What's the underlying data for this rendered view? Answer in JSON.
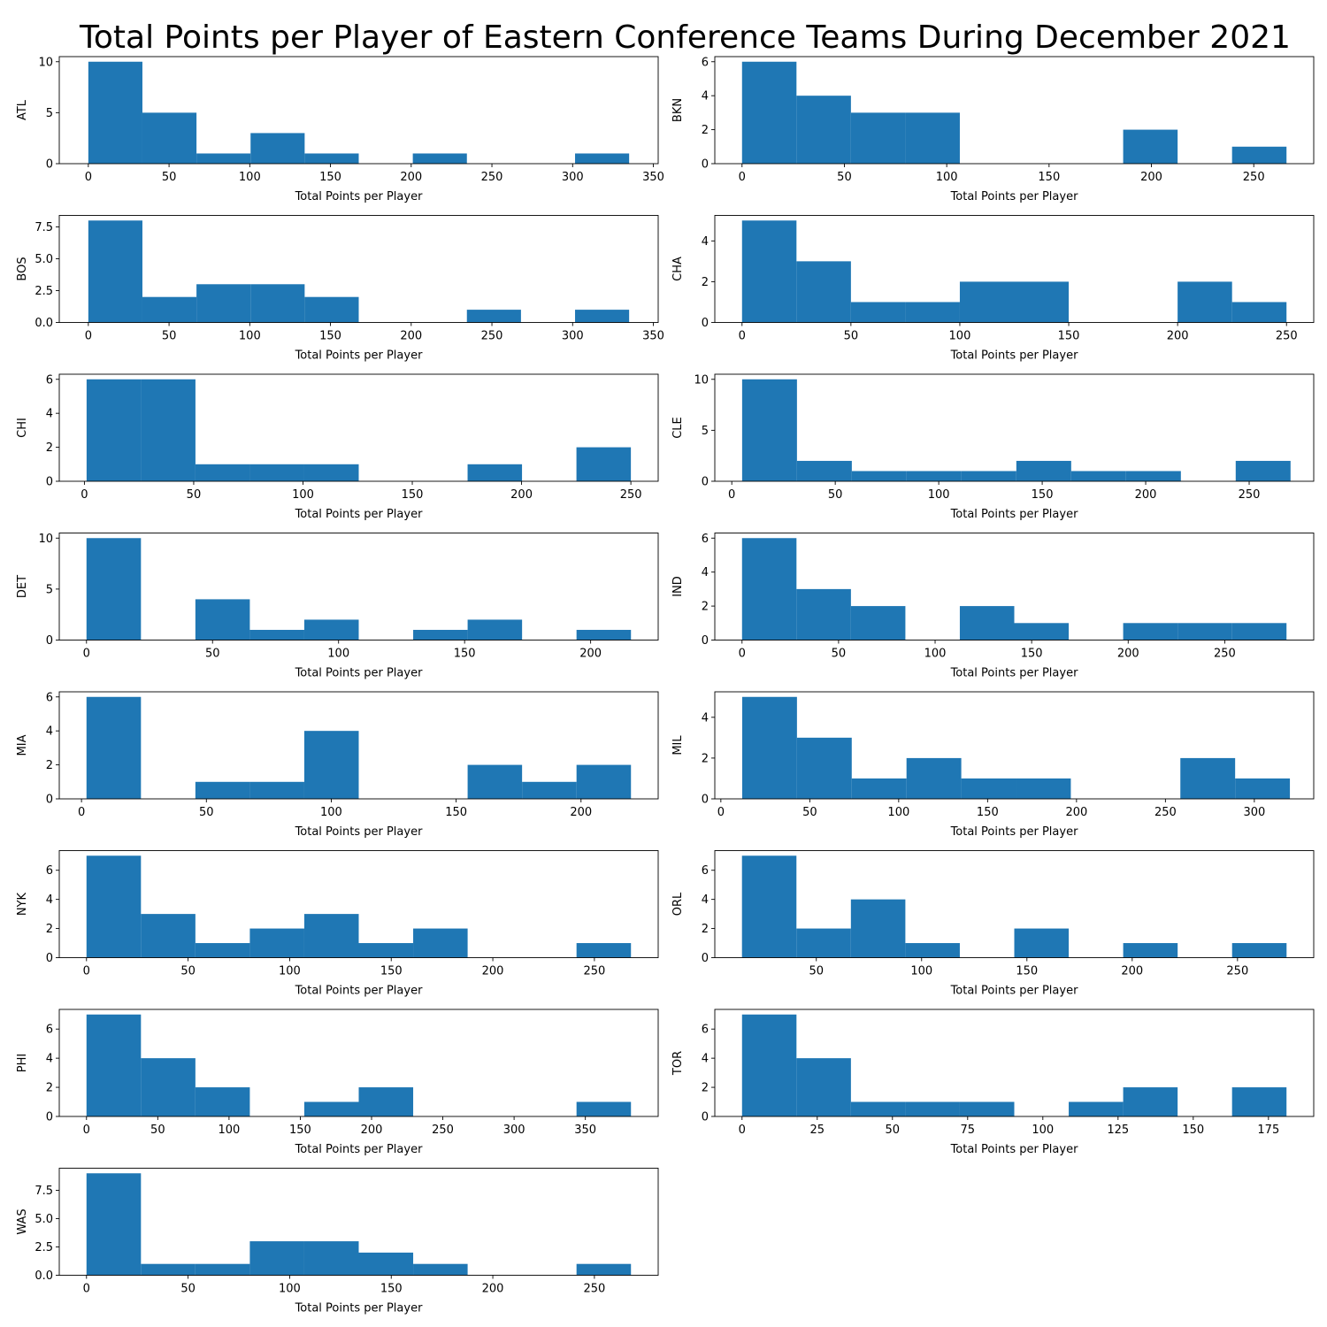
{
  "title": "Total Points per Player of Eastern Conference Teams During December 2021",
  "style": {
    "bar_color": "#1f77b4"
  },
  "chart_data": [
    {
      "type": "bar",
      "team": "ATL",
      "ylabel": "ATL",
      "xlabel": "Total Points per Player",
      "xlim": [
        -18,
        353
      ],
      "xticks": [
        0,
        50,
        100,
        150,
        200,
        250,
        300,
        350
      ],
      "ylim": [
        0,
        10.5
      ],
      "yticks": [
        0,
        5,
        10
      ],
      "bin_edges": [
        0,
        33.5,
        67,
        100.5,
        134,
        167.5,
        201,
        234.5,
        268,
        301.5,
        335
      ],
      "counts": [
        10,
        5,
        1,
        3,
        1,
        0,
        1,
        0,
        0,
        1
      ]
    },
    {
      "type": "bar",
      "team": "BKN",
      "ylabel": "BKN",
      "xlabel": "Total Points per Player",
      "xlim": [
        -13.3,
        279.3
      ],
      "xticks": [
        0,
        50,
        100,
        150,
        200,
        250
      ],
      "ylim": [
        0,
        6.3
      ],
      "yticks": [
        0,
        2,
        4,
        6
      ],
      "bin_edges": [
        0,
        26.6,
        53.2,
        79.8,
        106.4,
        133,
        159.6,
        186.2,
        212.8,
        239.4,
        266
      ],
      "counts": [
        6,
        4,
        3,
        3,
        0,
        0,
        0,
        2,
        0,
        1
      ]
    },
    {
      "type": "bar",
      "team": "BOS",
      "ylabel": "BOS",
      "xlabel": "Total Points per Player",
      "xlim": [
        -18,
        353
      ],
      "xticks": [
        0,
        50,
        100,
        150,
        200,
        250,
        300,
        350
      ],
      "ylim": [
        0,
        8.4
      ],
      "yticks": [
        0,
        2.5,
        5,
        7.5
      ],
      "ytick_labels": [
        "0.0",
        "2.5",
        "5.0",
        "7.5"
      ],
      "bin_edges": [
        0,
        33.5,
        67,
        100.5,
        134,
        167.5,
        201,
        234.5,
        268,
        301.5,
        335
      ],
      "counts": [
        8,
        2,
        3,
        3,
        2,
        0,
        0,
        1,
        0,
        1
      ]
    },
    {
      "type": "bar",
      "team": "CHA",
      "ylabel": "CHA",
      "xlabel": "Total Points per Player",
      "xlim": [
        -12.5,
        262.5
      ],
      "xticks": [
        0,
        50,
        100,
        150,
        200,
        250
      ],
      "ylim": [
        0,
        5.25
      ],
      "yticks": [
        0,
        2,
        4
      ],
      "bin_edges": [
        0,
        25,
        50,
        75,
        100,
        125,
        150,
        175,
        200,
        225,
        250
      ],
      "counts": [
        5,
        3,
        1,
        1,
        2,
        2,
        0,
        0,
        2,
        1
      ]
    },
    {
      "type": "bar",
      "team": "CHI",
      "ylabel": "CHI",
      "xlabel": "Total Points per Player",
      "xlim": [
        -11.5,
        262.5
      ],
      "xticks": [
        0,
        50,
        100,
        150,
        200,
        250
      ],
      "ylim": [
        0,
        6.3
      ],
      "yticks": [
        0,
        2,
        4,
        6
      ],
      "bin_edges": [
        1,
        25.9,
        50.8,
        75.7,
        100.6,
        125.5,
        150.4,
        175.3,
        200.2,
        225.1,
        250
      ],
      "counts": [
        6,
        6,
        1,
        1,
        1,
        0,
        0,
        1,
        0,
        2
      ]
    },
    {
      "type": "bar",
      "team": "CLE",
      "ylabel": "CLE",
      "xlabel": "Total Points per Player",
      "xlim": [
        -8.2,
        281.2
      ],
      "xticks": [
        0,
        50,
        100,
        150,
        200,
        250
      ],
      "ylim": [
        0,
        10.5
      ],
      "yticks": [
        0,
        5,
        10
      ],
      "bin_edges": [
        5,
        31.5,
        58,
        84.5,
        111,
        137.5,
        164,
        190.5,
        217,
        243.5,
        270
      ],
      "counts": [
        10,
        2,
        1,
        1,
        1,
        2,
        1,
        1,
        0,
        2
      ]
    },
    {
      "type": "bar",
      "team": "DET",
      "ylabel": "DET",
      "xlabel": "Total Points per Player",
      "xlim": [
        -10.8,
        226.8
      ],
      "xticks": [
        0,
        50,
        100,
        150,
        200
      ],
      "ylim": [
        0,
        10.5
      ],
      "yticks": [
        0,
        5,
        10
      ],
      "bin_edges": [
        0,
        21.6,
        43.2,
        64.8,
        86.4,
        108,
        129.6,
        151.2,
        172.8,
        194.4,
        216
      ],
      "counts": [
        10,
        0,
        4,
        1,
        2,
        0,
        1,
        2,
        0,
        1
      ]
    },
    {
      "type": "bar",
      "team": "IND",
      "ylabel": "IND",
      "xlabel": "Total Points per Player",
      "xlim": [
        -14.1,
        296.1
      ],
      "xticks": [
        0,
        50,
        100,
        150,
        200,
        250
      ],
      "ylim": [
        0,
        6.3
      ],
      "yticks": [
        0,
        2,
        4,
        6
      ],
      "bin_edges": [
        0,
        28.2,
        56.4,
        84.6,
        112.8,
        141,
        169.2,
        197.4,
        225.6,
        253.8,
        282
      ],
      "counts": [
        6,
        3,
        2,
        0,
        2,
        1,
        0,
        1,
        1,
        1
      ]
    },
    {
      "type": "bar",
      "team": "MIA",
      "ylabel": "MIA",
      "xlabel": "Total Points per Player",
      "xlim": [
        -8.9,
        230.9
      ],
      "xticks": [
        0,
        50,
        100,
        150,
        200
      ],
      "ylim": [
        0,
        6.3
      ],
      "yticks": [
        0,
        2,
        4,
        6
      ],
      "bin_edges": [
        2,
        23.8,
        45.6,
        67.4,
        89.2,
        111,
        132.8,
        154.6,
        176.4,
        198.2,
        220
      ],
      "counts": [
        6,
        0,
        1,
        1,
        4,
        0,
        0,
        2,
        1,
        2
      ]
    },
    {
      "type": "bar",
      "team": "MIL",
      "ylabel": "MIL",
      "xlabel": "Total Points per Player",
      "xlim": [
        -3.4,
        333.4
      ],
      "xticks": [
        0,
        50,
        100,
        150,
        200,
        250,
        300
      ],
      "ylim": [
        0,
        5.25
      ],
      "yticks": [
        0,
        2,
        4
      ],
      "bin_edges": [
        12,
        42.8,
        73.6,
        104.4,
        135.2,
        166,
        196.8,
        227.6,
        258.4,
        289.2,
        320
      ],
      "counts": [
        5,
        3,
        1,
        2,
        1,
        1,
        0,
        0,
        2,
        1
      ]
    },
    {
      "type": "bar",
      "team": "NYK",
      "ylabel": "NYK",
      "xlabel": "Total Points per Player",
      "xlim": [
        -13.4,
        281.4
      ],
      "xticks": [
        0,
        50,
        100,
        150,
        200,
        250
      ],
      "ylim": [
        0,
        7.35
      ],
      "yticks": [
        0,
        2,
        4,
        6
      ],
      "bin_edges": [
        0,
        26.8,
        53.6,
        80.4,
        107.2,
        134,
        160.8,
        187.6,
        214.4,
        241.2,
        268
      ],
      "counts": [
        7,
        3,
        1,
        2,
        3,
        1,
        2,
        0,
        0,
        1
      ]
    },
    {
      "type": "bar",
      "team": "ORL",
      "ylabel": "ORL",
      "xlabel": "Total Points per Player",
      "xlim": [
        1.8,
        286.2
      ],
      "xticks": [
        50,
        100,
        150,
        200,
        250
      ],
      "ylim": [
        0,
        7.35
      ],
      "yticks": [
        0,
        2,
        4,
        6
      ],
      "bin_edges": [
        14.7,
        40.56,
        66.42,
        92.28,
        118.14,
        144,
        169.86,
        195.72,
        221.58,
        247.44,
        273.3
      ],
      "counts": [
        7,
        2,
        4,
        1,
        0,
        2,
        0,
        1,
        0,
        1
      ]
    },
    {
      "type": "bar",
      "team": "PHI",
      "ylabel": "PHI",
      "xlabel": "Total Points per Player",
      "xlim": [
        -19.1,
        401.1
      ],
      "xticks": [
        0,
        50,
        100,
        150,
        200,
        250,
        300,
        350
      ],
      "ylim": [
        0,
        7.35
      ],
      "yticks": [
        0,
        2,
        4,
        6
      ],
      "bin_edges": [
        0,
        38.2,
        76.4,
        114.6,
        152.8,
        191,
        229.2,
        267.4,
        305.6,
        343.8,
        382
      ],
      "counts": [
        7,
        4,
        2,
        0,
        1,
        2,
        0,
        0,
        0,
        1
      ]
    },
    {
      "type": "bar",
      "team": "TOR",
      "ylabel": "TOR",
      "xlabel": "Total Points per Player",
      "xlim": [
        -9.05,
        190.05
      ],
      "xticks": [
        0,
        25,
        50,
        75,
        100,
        125,
        150,
        175
      ],
      "ylim": [
        0,
        7.35
      ],
      "yticks": [
        0,
        2,
        4,
        6
      ],
      "bin_edges": [
        0,
        18.1,
        36.2,
        54.3,
        72.4,
        90.5,
        108.6,
        126.7,
        144.8,
        162.9,
        181
      ],
      "counts": [
        7,
        4,
        1,
        1,
        1,
        0,
        1,
        2,
        0,
        2
      ]
    },
    {
      "type": "bar",
      "team": "WAS",
      "ylabel": "WAS",
      "xlabel": "Total Points per Player",
      "xlim": [
        -13.4,
        281.4
      ],
      "xticks": [
        0,
        50,
        100,
        150,
        200,
        250
      ],
      "ylim": [
        0,
        9.45
      ],
      "yticks": [
        0,
        2.5,
        5,
        7.5
      ],
      "ytick_labels": [
        "0.0",
        "2.5",
        "5.0",
        "7.5"
      ],
      "bin_edges": [
        0,
        26.8,
        53.6,
        80.4,
        107.2,
        134,
        160.8,
        187.6,
        214.4,
        241.2,
        268
      ],
      "counts": [
        9,
        1,
        1,
        3,
        3,
        2,
        1,
        0,
        0,
        1
      ]
    }
  ]
}
